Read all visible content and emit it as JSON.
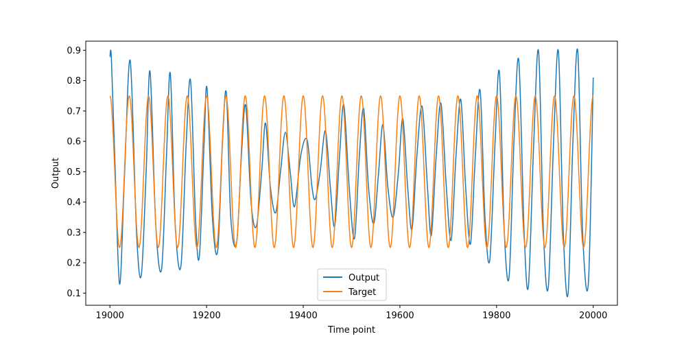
{
  "chart_data": {
    "type": "line",
    "title": "",
    "xlabel": "Time point",
    "ylabel": "Output",
    "xlim": [
      18950,
      20050
    ],
    "ylim": [
      0.06,
      0.93
    ],
    "xticks": [
      19000,
      19200,
      19400,
      19600,
      19800,
      20000
    ],
    "yticks": [
      0.1,
      0.2,
      0.3,
      0.4,
      0.5,
      0.6,
      0.7,
      0.8,
      0.9
    ],
    "ytick_labels": [
      "0.1",
      "0.2",
      "0.3",
      "0.4",
      "0.5",
      "0.6",
      "0.7",
      "0.8",
      "0.9"
    ],
    "grid": false,
    "legend_position": "lower center",
    "series": [
      {
        "name": "Output",
        "color": "#1f77b4",
        "x": [
          19000,
          19003,
          19010,
          19020,
          19030,
          19042,
          19055,
          19065,
          19075,
          19083,
          19095,
          19107,
          19117,
          19125,
          19135,
          19147,
          19158,
          19167,
          19177,
          19185,
          19195,
          19201,
          19212,
          19223,
          19233,
          19241,
          19250,
          19262,
          19272,
          19281,
          19292,
          19303,
          19314,
          19322,
          19332,
          19343,
          19353,
          19363,
          19373,
          19382,
          19395,
          19408,
          19418,
          19425,
          19435,
          19446,
          19456,
          19465,
          19475,
          19484,
          19495,
          19506,
          19516,
          19525,
          19535,
          19546,
          19556,
          19565,
          19575,
          19586,
          19597,
          19606,
          19616,
          19625,
          19635,
          19646,
          19657,
          19665,
          19675,
          19685,
          19696,
          19706,
          19716,
          19726,
          19736,
          19746,
          19756,
          19766,
          19776,
          19786,
          19797,
          19806,
          19816,
          19826,
          19836,
          19846,
          19857,
          19866,
          19877,
          19887,
          19897,
          19907,
          19918,
          19928,
          19938,
          19948,
          19958,
          19968,
          19978,
          19990,
          20000
        ],
        "y": [
          0.878,
          0.876,
          0.55,
          0.13,
          0.48,
          0.866,
          0.3,
          0.16,
          0.5,
          0.83,
          0.32,
          0.18,
          0.55,
          0.823,
          0.33,
          0.19,
          0.6,
          0.798,
          0.35,
          0.22,
          0.6,
          0.773,
          0.35,
          0.24,
          0.6,
          0.758,
          0.35,
          0.265,
          0.55,
          0.718,
          0.4,
          0.32,
          0.5,
          0.66,
          0.45,
          0.365,
          0.5,
          0.63,
          0.5,
          0.385,
          0.555,
          0.605,
          0.45,
          0.41,
          0.5,
          0.635,
          0.45,
          0.32,
          0.55,
          0.72,
          0.45,
          0.28,
          0.55,
          0.708,
          0.45,
          0.33,
          0.5,
          0.655,
          0.45,
          0.35,
          0.5,
          0.675,
          0.45,
          0.31,
          0.55,
          0.715,
          0.45,
          0.29,
          0.55,
          0.725,
          0.45,
          0.275,
          0.55,
          0.738,
          0.45,
          0.262,
          0.55,
          0.767,
          0.35,
          0.21,
          0.6,
          0.826,
          0.3,
          0.155,
          0.6,
          0.866,
          0.3,
          0.125,
          0.6,
          0.895,
          0.3,
          0.12,
          0.6,
          0.895,
          0.3,
          0.1,
          0.6,
          0.897,
          0.3,
          0.135,
          0.81
        ]
      },
      {
        "name": "Target",
        "color": "#ff7f0e",
        "function": "0.5 + 0.25*cos(2*pi*(x-19000)/40)",
        "x_start": 19000,
        "x_end": 20000,
        "period": 40,
        "center": 0.5,
        "amplitude": 0.25
      }
    ]
  }
}
